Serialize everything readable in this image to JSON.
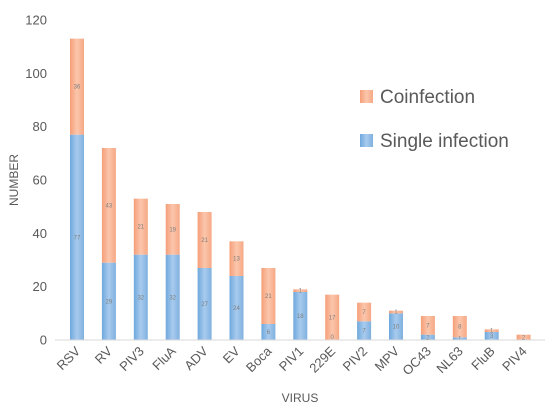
{
  "chart_data": {
    "type": "bar",
    "stacked": true,
    "title": "",
    "xlabel": "VIRUS",
    "ylabel": "NUMBER",
    "ylim": [
      0,
      120
    ],
    "yticks": [
      0,
      20,
      40,
      60,
      80,
      100,
      120
    ],
    "ytick_labels": [
      "0",
      "20",
      "40",
      "60",
      "80",
      "100",
      "120"
    ],
    "grid": false,
    "legend_position": "right",
    "categories": [
      "RSV",
      "RV",
      "PIV3",
      "FluA",
      "ADV",
      "EV",
      "Boca",
      "PIV1",
      "229E",
      "PIV2",
      "MPV",
      "OC43",
      "NL63",
      "FluB",
      "PIV4"
    ],
    "series": [
      {
        "name": "Single infection",
        "color": "#8fbbe6",
        "values": [
          77,
          29,
          32,
          32,
          27,
          24,
          6,
          18,
          0,
          7,
          10,
          2,
          1,
          3,
          0
        ],
        "labels": [
          "77",
          "29",
          "32",
          "32",
          "27",
          "24",
          "6",
          "18",
          "0",
          "7",
          "10",
          "2",
          "1",
          "3",
          ""
        ]
      },
      {
        "name": "Coinfection",
        "color": "#f7b393",
        "values": [
          36,
          43,
          21,
          19,
          21,
          13,
          21,
          1,
          17,
          7,
          1,
          7,
          8,
          1,
          2
        ],
        "labels": [
          "36",
          "43",
          "21",
          "19",
          "21",
          "13",
          "21",
          "1",
          "17",
          "7",
          "1",
          "7",
          "8",
          "1",
          "2"
        ]
      }
    ]
  }
}
